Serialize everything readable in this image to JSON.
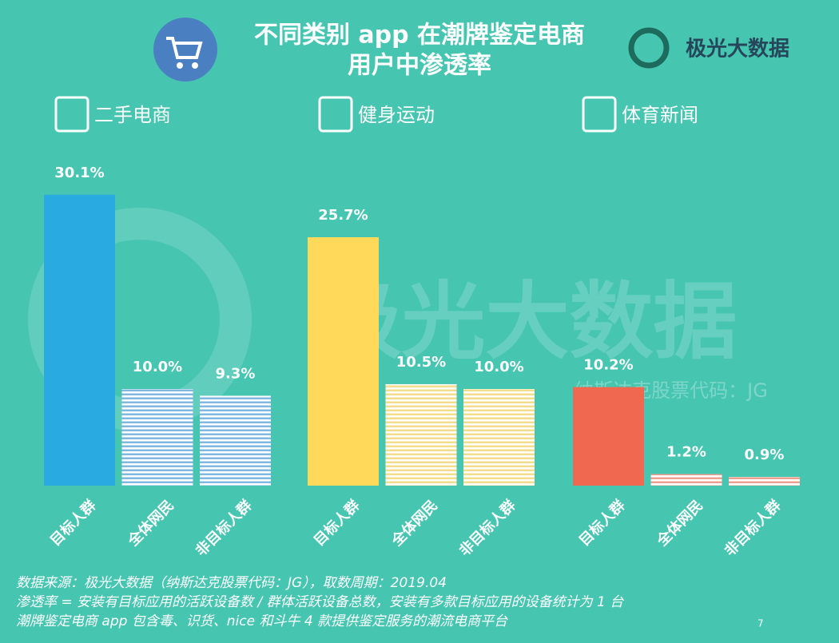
{
  "header": {
    "title_lines": [
      "不同类别 app 在潮牌鉴定电商",
      "用户中渗透率"
    ],
    "brand": "极光大数据"
  },
  "watermark": {
    "text": "极光大数据",
    "subtext": "纳斯达克股票代码：JG"
  },
  "chart_data": [
    {
      "type": "bar",
      "title": "二手电商",
      "categories": [
        "目标人群",
        "全体网民",
        "非目标人群"
      ],
      "values": [
        30.1,
        10.0,
        9.3
      ],
      "value_labels": [
        "30.1%",
        "10.0%",
        "9.3%"
      ],
      "color": "#29abe2"
    },
    {
      "type": "bar",
      "title": "健身运动",
      "categories": [
        "目标人群",
        "全体网民",
        "非目标人群"
      ],
      "values": [
        25.7,
        10.5,
        10.0
      ],
      "value_labels": [
        "25.7%",
        "10.5%",
        "10.0%"
      ],
      "color": "#ffda5a"
    },
    {
      "type": "bar",
      "title": "体育新闻",
      "categories": [
        "目标人群",
        "全体网民",
        "非目标人群"
      ],
      "values": [
        10.2,
        1.2,
        0.9
      ],
      "value_labels": [
        "10.2%",
        "1.2%",
        "0.9%"
      ],
      "color": "#f0684f"
    }
  ],
  "footer": {
    "notes": [
      "数据来源：极光大数据（纳斯达克股票代码：JG），取数周期：2019.04",
      "渗透率 = 安装有目标应用的活跃设备数 / 群体活跃设备总数，安装有多款目标应用的设备统计为 1 台",
      "潮牌鉴定电商 app 包含毒、识货、nice 和斗牛 4 款提供鉴定服务的潮流电商平台"
    ],
    "page": "7"
  }
}
